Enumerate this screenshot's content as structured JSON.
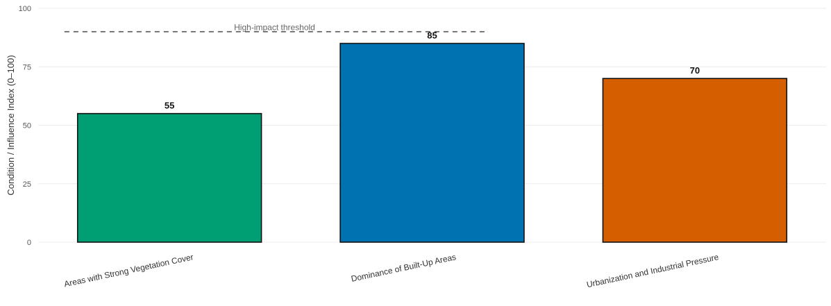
{
  "chart_data": {
    "type": "bar",
    "categories": [
      "Areas with Strong Vegetation Cover",
      "Dominance of Built-Up Areas",
      "Urbanization and Industrial Pressure"
    ],
    "values": [
      55,
      85,
      70
    ],
    "value_labels": [
      "55",
      "85",
      "70"
    ],
    "colors": [
      "#009e73",
      "#0072b2",
      "#d55e00"
    ],
    "ylabel": "Condition / Influence Index (0–100)",
    "ylim": [
      0,
      100
    ],
    "yticks": [
      0,
      25,
      50,
      75,
      100
    ],
    "grid": true,
    "threshold": {
      "value": 90,
      "label": "High-impact threshold",
      "x_start": 0.6,
      "x_end": 2.2
    }
  }
}
